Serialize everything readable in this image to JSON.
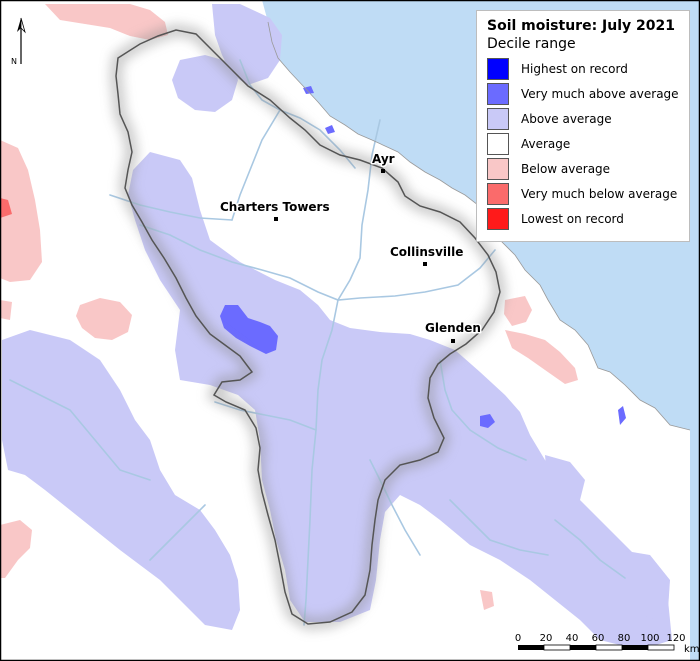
{
  "map": {
    "title": "Soil moisture: July 2021",
    "subtitle": "Decile range",
    "legend": [
      {
        "label": "Highest on record",
        "color": "#0000ff"
      },
      {
        "label": "Very much above average",
        "color": "#6b6bff"
      },
      {
        "label": "Above average",
        "color": "#c9c9f7"
      },
      {
        "label": "Average",
        "color": "#ffffff"
      },
      {
        "label": "Below average",
        "color": "#f9c7c7"
      },
      {
        "label": "Very much below average",
        "color": "#fa6b6b"
      },
      {
        "label": "Lowest on record",
        "color": "#ff1a1a"
      }
    ],
    "places": [
      {
        "name": "Ayr"
      },
      {
        "name": "Charters Towers"
      },
      {
        "name": "Collinsville"
      },
      {
        "name": "Glenden"
      }
    ],
    "north_label": "N",
    "scale": {
      "ticks": [
        "0",
        "20",
        "40",
        "60",
        "80",
        "100",
        "120"
      ],
      "unit": "km"
    },
    "colors": {
      "sea": "#bfdcf5",
      "river": "#a9c8e2",
      "outline": "#555555"
    }
  }
}
